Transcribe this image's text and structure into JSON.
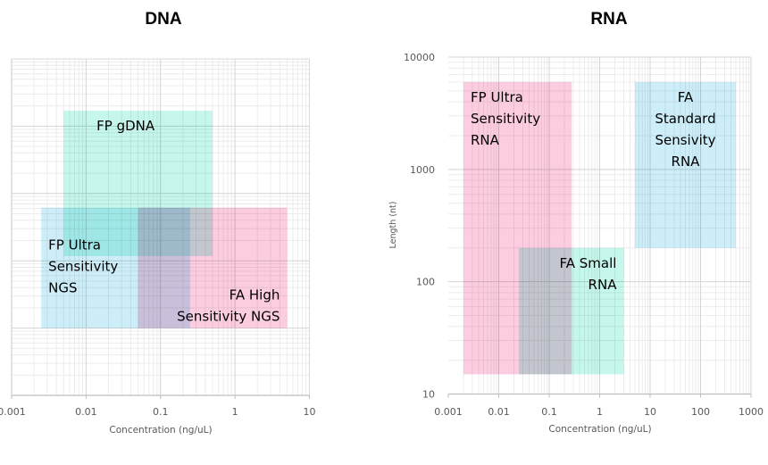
{
  "chart_data": [
    {
      "type": "area",
      "subtype": "log-log range rectangles",
      "title": "DNA",
      "xlabel": "Concentration (ng/uL)",
      "ylabel": "",
      "xscale": "log",
      "yscale": "log",
      "xlim": [
        0.001,
        10
      ],
      "x_ticks": [
        "0.001",
        "0.01",
        "0.1",
        "1",
        "10"
      ],
      "ylim_decades": 5,
      "y_ticks": [],
      "grid": true,
      "legend": "none",
      "regions": [
        {
          "name": "FP gDNA",
          "label_lines": [
            "FP gDNA"
          ],
          "color": "#c6f7ec",
          "x": [
            0.005,
            0.5
          ],
          "y_decade": [
            2.07,
            4.23
          ],
          "label_align": "center-top"
        },
        {
          "name": "FP Ultra Sensitivity NGS",
          "label_lines": [
            "FP Ultra",
            "Sensitivity",
            "NGS"
          ],
          "color": "#cdeef9",
          "x": [
            0.0025,
            0.25
          ],
          "y_decade": [
            1.0,
            2.79
          ],
          "label_align": "left"
        },
        {
          "name": "FA High Sensitivity NGS",
          "label_lines": [
            "FA High",
            "Sensitivity NGS"
          ],
          "color": "#fccde0",
          "x": [
            0.05,
            5
          ],
          "y_decade": [
            1.0,
            2.79
          ],
          "label_align": "right-bottom"
        }
      ]
    },
    {
      "type": "area",
      "subtype": "log-log range rectangles",
      "title": "RNA",
      "xlabel": "Concentration (ng/uL)",
      "ylabel": "Length (nt)",
      "xscale": "log",
      "yscale": "log",
      "xlim": [
        0.001,
        1000
      ],
      "ylim": [
        10,
        10000
      ],
      "x_ticks": [
        "0.001",
        "0.01",
        "0.1",
        "1",
        "10",
        "100",
        "1000"
      ],
      "y_ticks": [
        "10",
        "100",
        "1000",
        "10000"
      ],
      "grid": true,
      "legend": "none",
      "regions": [
        {
          "name": "FP Ultra Sensitivity RNA",
          "label_lines": [
            "FP Ultra",
            "Sensitivity",
            "RNA"
          ],
          "color": "#fccde0",
          "x": [
            0.002,
            0.28
          ],
          "y": [
            15,
            6000
          ],
          "label_align": "left"
        },
        {
          "name": "FA Small RNA",
          "label_lines": [
            "FA Small",
            "RNA"
          ],
          "color": "#c6f7ec",
          "x": [
            0.025,
            3
          ],
          "y": [
            15,
            200
          ],
          "label_align": "right"
        },
        {
          "name": "FA Standard Sensivity RNA",
          "label_lines": [
            "FA",
            "Standard",
            "Sensivity",
            "RNA"
          ],
          "color": "#cdeef9",
          "x": [
            5,
            500
          ],
          "y": [
            200,
            6000
          ],
          "label_align": "center"
        }
      ]
    }
  ]
}
